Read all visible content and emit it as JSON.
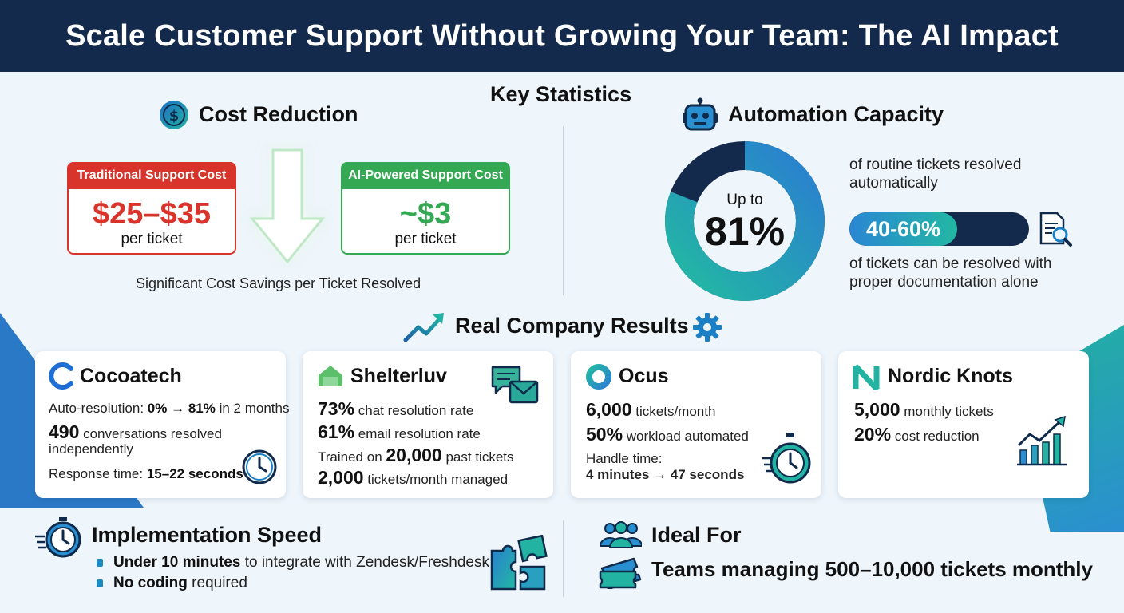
{
  "header": {
    "title": "Scale Customer Support Without Growing Your Team: The AI Impact"
  },
  "key_stats": {
    "title": "Key Statistics"
  },
  "cost_reduction": {
    "title": "Cost Reduction",
    "traditional": {
      "tag": "Traditional Support Cost",
      "price": "$25–$35",
      "per": "per ticket"
    },
    "ai": {
      "tag": "AI-Powered Support Cost",
      "price": "~$3",
      "per": "per ticket"
    },
    "caption": "Significant Cost Savings per Ticket Resolved",
    "colors": {
      "red": "#d9342b",
      "green": "#35a853"
    }
  },
  "automation": {
    "title": "Automation Capacity",
    "donut_prefix": "Up to",
    "donut_value": "81%",
    "donut_fraction": 0.81,
    "donut_caption": "of routine tickets resolved automatically",
    "bar_label": "40-60%",
    "bar_fraction": 0.6,
    "bar_caption": "of tickets can be resolved with proper documentation alone"
  },
  "results": {
    "title": "Real Company Results"
  },
  "companies": [
    {
      "name": "Cocoatech",
      "l1_pre": "Auto-resolution: ",
      "l1_b": "0% → 81%",
      "l1_post": " in 2 months",
      "l2_b": "490",
      "l2_post": " conversations resolved",
      "l3": "independently",
      "l4_pre": "Response time: ",
      "l4_b": "15–22 seconds"
    },
    {
      "name": "Shelterluv",
      "l1_b": "73%",
      "l1_post": " chat resolution rate",
      "l2_b": "61%",
      "l2_post": " email resolution rate",
      "l3_pre": "Trained on ",
      "l3_b": "20,000",
      "l3_post": " past tickets",
      "l4_b": "2,000",
      "l4_post": " tickets/month managed"
    },
    {
      "name": "Ocus",
      "l1_b": "6,000",
      "l1_post": " tickets/month",
      "l2_b": "50%",
      "l2_post": " workload automated",
      "l3": "Handle time:",
      "l4_b": "4 minutes → 47 seconds"
    },
    {
      "name": "Nordic Knots",
      "l1_b": "5,000",
      "l1_post": " monthly tickets",
      "l2_b": "20%",
      "l2_post": " cost reduction"
    }
  ],
  "implementation": {
    "title": "Implementation Speed",
    "b1_b": "Under 10 minutes",
    "b1_post": " to integrate with Zendesk/Freshdesk",
    "b2_b": "No coding",
    "b2_post": " required"
  },
  "ideal": {
    "title": "Ideal For",
    "text": "Teams managing 500–10,000 tickets monthly"
  }
}
